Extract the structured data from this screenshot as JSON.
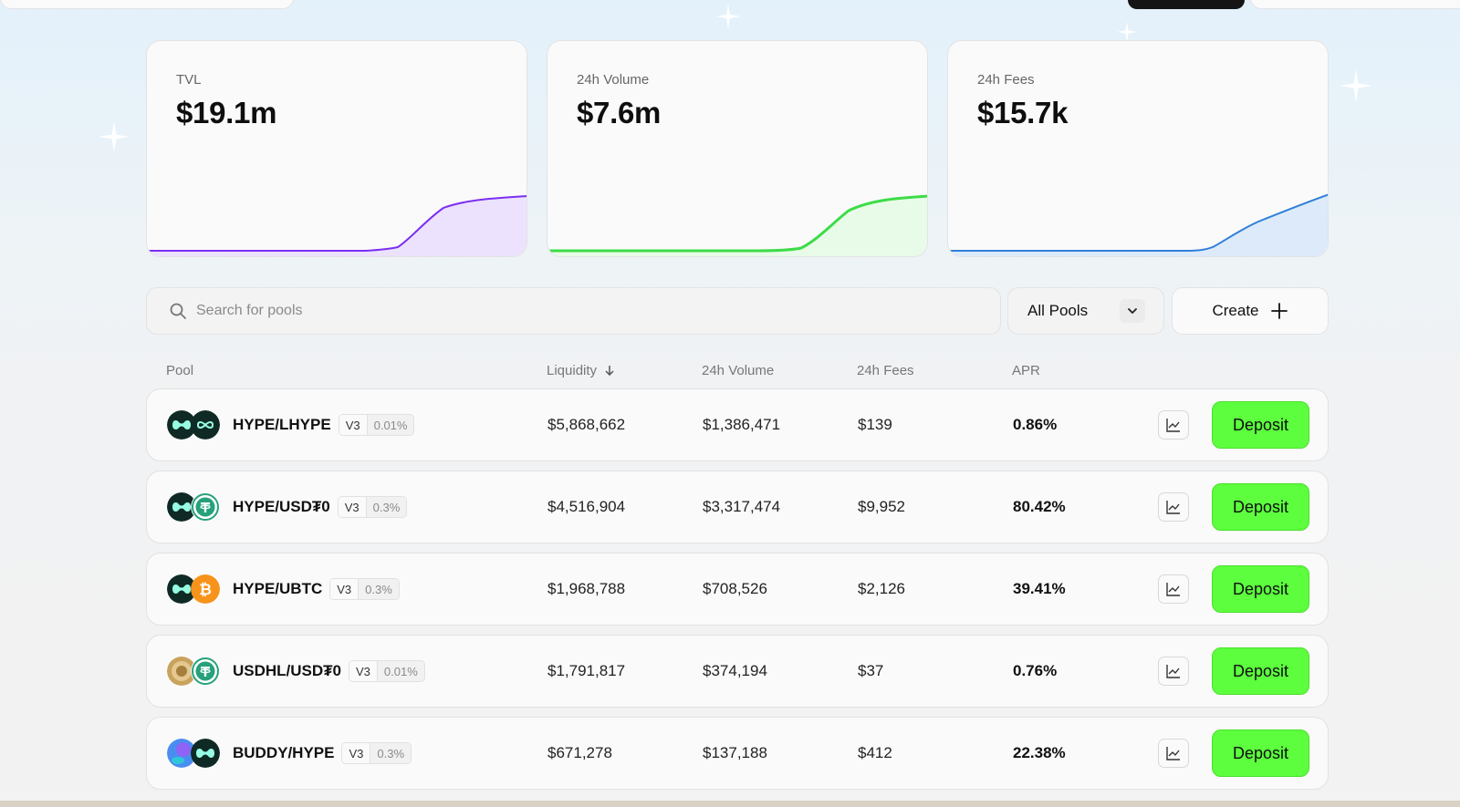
{
  "stats": [
    {
      "label": "TVL",
      "value": "$19.1m",
      "color": "#7b2ff2",
      "fill": "#ece2fd"
    },
    {
      "label": "24h Volume",
      "value": "$7.6m",
      "color": "#3ddc47",
      "fill": "#e4fae4"
    },
    {
      "label": "24h Fees",
      "value": "$15.7k",
      "color": "#2f80d8",
      "fill": "#dceafa"
    }
  ],
  "search": {
    "placeholder": "Search for pools",
    "value": ""
  },
  "filter": {
    "selected": "All Pools"
  },
  "create_label": "Create",
  "columns": {
    "pool": "Pool",
    "liquidity": "Liquidity",
    "volume": "24h Volume",
    "fees": "24h Fees",
    "apr": "APR"
  },
  "pools": [
    {
      "pair": "HYPE/LHYPE",
      "version": "V3",
      "fee_tier": "0.01%",
      "liquidity": "$5,868,662",
      "volume_24h": "$1,386,471",
      "fees_24h": "$139",
      "apr": "0.86%",
      "tokens": [
        "hype-token-icon",
        "lhype-token-icon"
      ],
      "deposit_label": "Deposit"
    },
    {
      "pair": "HYPE/USD₮0",
      "version": "V3",
      "fee_tier": "0.3%",
      "liquidity": "$4,516,904",
      "volume_24h": "$3,317,474",
      "fees_24h": "$9,952",
      "apr": "80.42%",
      "tokens": [
        "hype-token-icon",
        "usdt0-token-icon"
      ],
      "deposit_label": "Deposit"
    },
    {
      "pair": "HYPE/UBTC",
      "version": "V3",
      "fee_tier": "0.3%",
      "liquidity": "$1,968,788",
      "volume_24h": "$708,526",
      "fees_24h": "$2,126",
      "apr": "39.41%",
      "tokens": [
        "hype-token-icon",
        "ubtc-token-icon"
      ],
      "deposit_label": "Deposit"
    },
    {
      "pair": "USDHL/USD₮0",
      "version": "V3",
      "fee_tier": "0.01%",
      "liquidity": "$1,791,817",
      "volume_24h": "$374,194",
      "fees_24h": "$37",
      "apr": "0.76%",
      "tokens": [
        "usdhl-token-icon",
        "usdt0-token-icon"
      ],
      "deposit_label": "Deposit"
    },
    {
      "pair": "BUDDY/HYPE",
      "version": "V3",
      "fee_tier": "0.3%",
      "liquidity": "$671,278",
      "volume_24h": "$137,188",
      "fees_24h": "$412",
      "apr": "22.38%",
      "tokens": [
        "buddy-token-icon",
        "hype-token-icon"
      ],
      "deposit_label": "Deposit"
    }
  ]
}
